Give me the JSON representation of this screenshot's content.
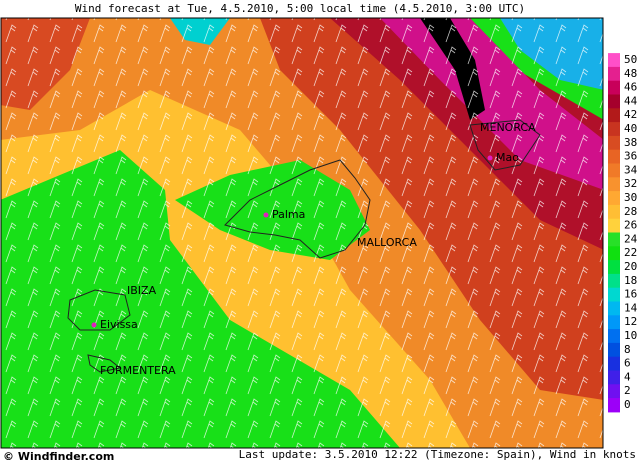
{
  "header": {
    "title": "Wind forecast at Tue, 4.5.2010, 5:00 local time (4.5.2010, 3:00 UTC)"
  },
  "places": [
    "MENORCA",
    "Mao",
    "Palma",
    "MALLORCA",
    "IBIZA",
    "Eivissa",
    "FORMENTERA"
  ],
  "legend": {
    "ticks": [
      50,
      48,
      46,
      44,
      42,
      40,
      38,
      36,
      34,
      32,
      30,
      28,
      26,
      24,
      22,
      20,
      18,
      16,
      14,
      12,
      10,
      8,
      6,
      4,
      2,
      0
    ],
    "colors": [
      "#ff4fc8",
      "#e4208f",
      "#c8005a",
      "#a5002c",
      "#b21a1a",
      "#c83420",
      "#d84c22",
      "#e86424",
      "#f07a28",
      "#f8922e",
      "#ffa832",
      "#ffbe34",
      "#ffd23c",
      "#28e028",
      "#10e010",
      "#00e040",
      "#00e08a",
      "#00d8d0",
      "#00b8f0",
      "#0098f8",
      "#0070f0",
      "#0050e0",
      "#1830e0",
      "#4020e8",
      "#7010f0",
      "#9c00f8"
    ]
  },
  "footer": {
    "copyright": "© Windfinder.com",
    "update": "Last update: 3.5.2010 12:22 (Timezone: Spain), Wind in knots"
  }
}
